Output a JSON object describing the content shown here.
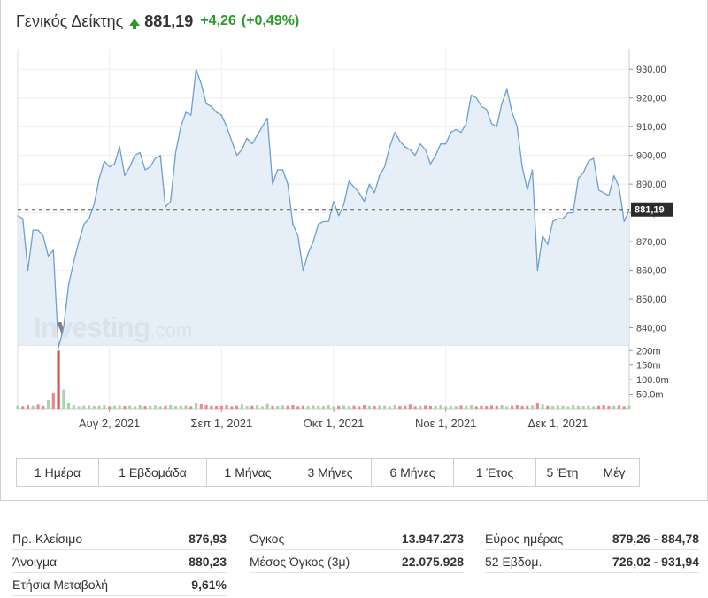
{
  "header": {
    "name": "Γενικός Δείκτης",
    "last": "881,19",
    "change": "+4,26",
    "change_pct": "(+0,49%)"
  },
  "colors": {
    "up": "#2a9a2a",
    "down": "#d9534f",
    "line": "#6c9fd0",
    "area": "#e3edf7",
    "volume_up": "#a8d5a8",
    "volume_down": "#e88888",
    "volume_spike": "#d9534f"
  },
  "chart_data": {
    "type": "area",
    "price": {
      "values": [
        879,
        878,
        860,
        874,
        874,
        872,
        865,
        867,
        833,
        840,
        855,
        863,
        870,
        876,
        878,
        883,
        892,
        898,
        896,
        897,
        903,
        893,
        896,
        900,
        901,
        895,
        896,
        899,
        900,
        882,
        884,
        901,
        910,
        915,
        914,
        930,
        925,
        918,
        917,
        915,
        914,
        910,
        905,
        900,
        902,
        906,
        904,
        907,
        910,
        913,
        890,
        895,
        895,
        890,
        876,
        872,
        860,
        866,
        870,
        876,
        877,
        877,
        884,
        879,
        883,
        891,
        889,
        887,
        884,
        890,
        887,
        893,
        896,
        903,
        908,
        905,
        903,
        902,
        900,
        904,
        902,
        897,
        900,
        904,
        904,
        908,
        909,
        908,
        911,
        921,
        920,
        917,
        916,
        911,
        910,
        918,
        923,
        915,
        910,
        896,
        888,
        895,
        860,
        872,
        869,
        877,
        878,
        878,
        880,
        880,
        892,
        894,
        898,
        899,
        888,
        887,
        886,
        893,
        889,
        877,
        881
      ],
      "last": 881.19,
      "last_label": "881,19",
      "y_ticks": [
        "930,00",
        "920,00",
        "910,00",
        "900,00",
        "890,00",
        "880,00",
        "870,00",
        "860,00",
        "850,00",
        "840,00"
      ],
      "y_tick_values": [
        930,
        920,
        910,
        900,
        890,
        880,
        870,
        860,
        850,
        840
      ],
      "ylim": [
        834,
        935
      ]
    },
    "volume": {
      "values": [
        10,
        8,
        12,
        10,
        14,
        9,
        30,
        55,
        200,
        65,
        20,
        12,
        8,
        10,
        11,
        9,
        10,
        12,
        8,
        10,
        11,
        9,
        10,
        8,
        12,
        9,
        10,
        11,
        8,
        10,
        12,
        9,
        10,
        11,
        8,
        20,
        15,
        12,
        10,
        9,
        10,
        12,
        8,
        10,
        14,
        9,
        10,
        12,
        8,
        16,
        10,
        9,
        11,
        10,
        12,
        8,
        10,
        9,
        11,
        10,
        9,
        12,
        8,
        10,
        11,
        9,
        10,
        8,
        12,
        10,
        9,
        11,
        10,
        8,
        12,
        9,
        10,
        14,
        8,
        10,
        11,
        9,
        10,
        12,
        8,
        10,
        9,
        11,
        10,
        12,
        8,
        10,
        9,
        11,
        10,
        12,
        8,
        10,
        12,
        9,
        10,
        11,
        20,
        14,
        10,
        9,
        11,
        10,
        8,
        12,
        10,
        9,
        11,
        8,
        10,
        12,
        9,
        10,
        11,
        8,
        10
      ],
      "up": [
        true,
        false,
        false,
        true,
        false,
        false,
        true,
        false,
        false,
        true,
        true,
        true,
        true,
        true,
        true,
        true,
        true,
        true,
        false,
        true,
        true,
        false,
        true,
        true,
        true,
        false,
        true,
        true,
        true,
        false,
        true,
        true,
        true,
        true,
        false,
        true,
        false,
        false,
        false,
        false,
        false,
        false,
        false,
        false,
        true,
        true,
        false,
        true,
        true,
        true,
        false,
        true,
        true,
        false,
        false,
        false,
        false,
        true,
        true,
        true,
        true,
        true,
        true,
        false,
        true,
        true,
        false,
        false,
        false,
        true,
        false,
        true,
        true,
        true,
        true,
        false,
        false,
        false,
        false,
        true,
        false,
        false,
        true,
        true,
        true,
        true,
        true,
        false,
        true,
        true,
        false,
        false,
        false,
        false,
        false,
        true,
        true,
        false,
        false,
        false,
        false,
        true,
        false,
        true,
        false,
        true,
        true,
        true,
        true,
        true,
        true,
        true,
        true,
        true,
        false,
        false,
        false,
        true,
        false,
        false,
        true
      ],
      "y_ticks": [
        "200m",
        "150m",
        "100.0m",
        "50.0m"
      ],
      "y_tick_values": [
        200,
        150,
        100,
        50
      ],
      "ylim": [
        0,
        210
      ]
    },
    "x_ticks": [
      {
        "label": "Αυγ 2, 2021",
        "index": 18
      },
      {
        "label": "Σεπ 1, 2021",
        "index": 40
      },
      {
        "label": "Οκτ 1, 2021",
        "index": 62
      },
      {
        "label": "Νοε 1, 2021",
        "index": 84
      },
      {
        "label": "Δεκ 1, 2021",
        "index": 106
      }
    ],
    "watermark": {
      "brand": "Investing",
      "suffix": ".com"
    }
  },
  "ranges": [
    {
      "label": "1 Ημέρα"
    },
    {
      "label": "1 Εβδομάδα"
    },
    {
      "label": "1 Μήνας"
    },
    {
      "label": "3 Μήνες"
    },
    {
      "label": "6 Μήνες"
    },
    {
      "label": "1 Έτος"
    },
    {
      "label": "5 Έτη"
    },
    {
      "label": "Μέγ"
    }
  ],
  "stats": {
    "col1": [
      {
        "label": "Πρ. Κλείσιμο",
        "value": "876,93"
      },
      {
        "label": "Άνοιγμα",
        "value": "880,23"
      },
      {
        "label": "Ετήσια Μεταβολή",
        "value": "9,61%"
      }
    ],
    "col2": [
      {
        "label": "Όγκος",
        "value": "13.947.273"
      },
      {
        "label": "Μέσος Όγκος (3μ)",
        "value": "22.075.928"
      }
    ],
    "col3": [
      {
        "label": "Εύρος ημέρας",
        "value": "879,26 - 884,78"
      },
      {
        "label": "52 Εβδομ.",
        "value": "726,02 - 931,94"
      }
    ]
  }
}
